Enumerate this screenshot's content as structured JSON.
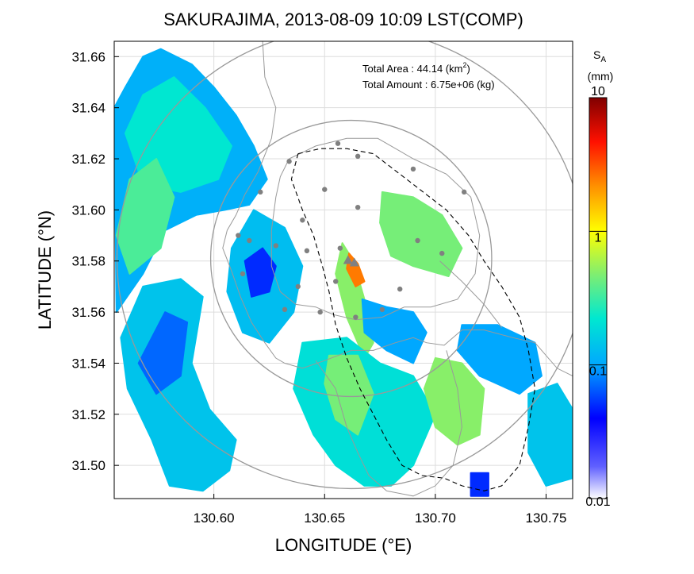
{
  "chart_data": {
    "type": "heatmap",
    "title": "SAKURAJIMA, 2013-08-09 10:09 LST(COMP)",
    "xlabel": "LONGITUDE (°E)",
    "ylabel": "LATITUDE (°N)",
    "xlim": [
      130.555,
      130.762
    ],
    "ylim": [
      31.487,
      31.666
    ],
    "xticks": [
      130.6,
      130.65,
      130.7,
      130.75
    ],
    "xtick_labels": [
      "130.60",
      "130.65",
      "130.70",
      "130.75"
    ],
    "yticks": [
      31.5,
      31.52,
      31.54,
      31.56,
      31.58,
      31.6,
      31.62,
      31.64,
      31.66
    ],
    "ytick_labels": [
      "31.50",
      "31.52",
      "31.54",
      "31.56",
      "31.58",
      "31.60",
      "31.62",
      "31.64",
      "31.66"
    ],
    "grid": true,
    "annotation": {
      "area_label": "Total Area   : 44.14 (km",
      "area_sup": "2",
      "area_close": ")",
      "amount_label": "Total Amount : 6.75e+06 (kg)"
    },
    "colorbar": {
      "title_main": "S",
      "title_sub": "A",
      "unit": "(mm)",
      "scale": "log",
      "range": [
        0.01,
        10
      ],
      "tick_values": [
        0.01,
        0.1,
        1,
        10
      ],
      "tick_labels": [
        "0.01",
        "0.1",
        "1",
        "10"
      ],
      "colormap": [
        "#ffffff",
        "#0000ff",
        "#00ccff",
        "#88ee88",
        "#ffff00",
        "#ff8000",
        "#ff0000",
        "#800000"
      ]
    },
    "vent": {
      "lon": 130.662,
      "lat": 31.581
    },
    "stations": [
      [
        130.634,
        31.619
      ],
      [
        130.656,
        31.626
      ],
      [
        130.665,
        31.621
      ],
      [
        130.69,
        31.616
      ],
      [
        130.713,
        31.607
      ],
      [
        130.621,
        31.607
      ],
      [
        130.65,
        31.608
      ],
      [
        130.665,
        31.601
      ],
      [
        130.64,
        31.596
      ],
      [
        130.611,
        31.59
      ],
      [
        130.616,
        31.588
      ],
      [
        130.628,
        31.586
      ],
      [
        130.642,
        31.584
      ],
      [
        130.657,
        31.585
      ],
      [
        130.692,
        31.588
      ],
      [
        130.703,
        31.583
      ],
      [
        130.613,
        31.575
      ],
      [
        130.638,
        31.57
      ],
      [
        130.655,
        31.572
      ],
      [
        130.684,
        31.569
      ],
      [
        130.632,
        31.561
      ],
      [
        130.648,
        31.56
      ],
      [
        130.664,
        31.558
      ],
      [
        130.676,
        31.561
      ]
    ],
    "echo_regions": [
      {
        "poly": [
          [
            130.555,
            31.64
          ],
          [
            130.56,
            31.648
          ],
          [
            130.568,
            31.66
          ],
          [
            130.576,
            31.663
          ],
          [
            130.59,
            31.657
          ],
          [
            130.6,
            31.648
          ],
          [
            130.61,
            31.637
          ],
          [
            130.618,
            31.625
          ],
          [
            130.624,
            31.612
          ],
          [
            130.616,
            31.602
          ],
          [
            130.605,
            31.6
          ],
          [
            130.592,
            31.598
          ],
          [
            130.578,
            31.592
          ],
          [
            130.568,
            31.575
          ],
          [
            130.556,
            31.56
          ]
        ],
        "value": 0.11
      },
      {
        "poly": [
          [
            130.56,
            31.63
          ],
          [
            130.568,
            31.645
          ],
          [
            130.582,
            31.652
          ],
          [
            130.596,
            31.64
          ],
          [
            130.608,
            31.625
          ],
          [
            130.602,
            31.612
          ],
          [
            130.585,
            31.607
          ],
          [
            130.568,
            31.61
          ]
        ],
        "value": 0.22
      },
      {
        "poly": [
          [
            130.556,
            31.59
          ],
          [
            130.562,
            31.612
          ],
          [
            130.574,
            31.62
          ],
          [
            130.582,
            31.605
          ],
          [
            130.576,
            31.585
          ],
          [
            130.562,
            31.575
          ]
        ],
        "value": 0.35
      },
      {
        "poly": [
          [
            130.568,
            31.57
          ],
          [
            130.585,
            31.573
          ],
          [
            130.595,
            31.566
          ],
          [
            130.59,
            31.54
          ],
          [
            130.598,
            31.522
          ],
          [
            130.61,
            31.51
          ],
          [
            130.607,
            31.498
          ],
          [
            130.595,
            31.49
          ],
          [
            130.58,
            31.492
          ],
          [
            130.572,
            31.51
          ],
          [
            130.561,
            31.53
          ],
          [
            130.558,
            31.55
          ]
        ],
        "value": 0.14
      },
      {
        "poly": [
          [
            130.578,
            31.56
          ],
          [
            130.588,
            31.556
          ],
          [
            130.585,
            31.535
          ],
          [
            130.574,
            31.528
          ],
          [
            130.566,
            31.54
          ]
        ],
        "value": 0.07
      },
      {
        "poly": [
          [
            130.618,
            31.6
          ],
          [
            130.632,
            31.593
          ],
          [
            130.64,
            31.578
          ],
          [
            130.636,
            31.56
          ],
          [
            130.625,
            31.548
          ],
          [
            130.613,
            31.552
          ],
          [
            130.606,
            31.568
          ],
          [
            130.608,
            31.585
          ]
        ],
        "value": 0.13
      },
      {
        "poly": [
          [
            130.614,
            31.58
          ],
          [
            130.622,
            31.585
          ],
          [
            130.628,
            31.578
          ],
          [
            130.625,
            31.568
          ],
          [
            130.617,
            31.566
          ]
        ],
        "value": 0.05
      },
      {
        "poly": [
          [
            130.658,
            31.587
          ],
          [
            130.663,
            31.58
          ],
          [
            130.668,
            31.565
          ],
          [
            130.672,
            31.548
          ],
          [
            130.668,
            31.542
          ],
          [
            130.66,
            31.558
          ],
          [
            130.655,
            31.575
          ]
        ],
        "value": 0.5
      },
      {
        "poly": [
          [
            130.661,
            31.583
          ],
          [
            130.665,
            31.579
          ],
          [
            130.668,
            31.572
          ],
          [
            130.664,
            31.57
          ],
          [
            130.66,
            31.577
          ]
        ],
        "value": 2.5
      },
      {
        "poly": [
          [
            130.667,
            31.565
          ],
          [
            130.678,
            31.562
          ],
          [
            130.69,
            31.56
          ],
          [
            130.696,
            31.552
          ],
          [
            130.69,
            31.54
          ],
          [
            130.678,
            31.545
          ],
          [
            130.668,
            31.552
          ]
        ],
        "value": 0.1
      },
      {
        "poly": [
          [
            130.676,
            31.607
          ],
          [
            130.69,
            31.605
          ],
          [
            130.703,
            31.598
          ],
          [
            130.712,
            31.585
          ],
          [
            130.706,
            31.574
          ],
          [
            130.69,
            31.578
          ],
          [
            130.68,
            31.582
          ],
          [
            130.675,
            31.595
          ]
        ],
        "value": 0.45
      },
      {
        "poly": [
          [
            130.64,
            31.548
          ],
          [
            130.66,
            31.55
          ],
          [
            130.675,
            31.54
          ],
          [
            130.69,
            31.535
          ],
          [
            130.7,
            31.52
          ],
          [
            130.69,
            31.5
          ],
          [
            130.68,
            31.492
          ],
          [
            130.668,
            31.492
          ],
          [
            130.655,
            31.5
          ],
          [
            130.645,
            31.512
          ],
          [
            130.636,
            31.53
          ]
        ],
        "value": 0.2
      },
      {
        "poly": [
          [
            130.652,
            31.543
          ],
          [
            130.665,
            31.543
          ],
          [
            130.672,
            31.528
          ],
          [
            130.665,
            31.512
          ],
          [
            130.655,
            31.518
          ],
          [
            130.65,
            31.532
          ]
        ],
        "value": 0.45
      },
      {
        "poly": [
          [
            130.7,
            31.542
          ],
          [
            130.712,
            31.54
          ],
          [
            130.722,
            31.53
          ],
          [
            130.72,
            31.512
          ],
          [
            130.71,
            31.508
          ],
          [
            130.7,
            31.515
          ],
          [
            130.695,
            31.53
          ]
        ],
        "value": 0.5
      },
      {
        "poly": [
          [
            130.712,
            31.555
          ],
          [
            130.728,
            31.555
          ],
          [
            130.745,
            31.548
          ],
          [
            130.748,
            31.535
          ],
          [
            130.738,
            31.528
          ],
          [
            130.72,
            31.535
          ],
          [
            130.71,
            31.545
          ]
        ],
        "value": 0.1
      },
      {
        "poly": [
          [
            130.742,
            31.528
          ],
          [
            130.755,
            31.532
          ],
          [
            130.762,
            31.522
          ],
          [
            130.762,
            31.495
          ],
          [
            130.75,
            31.492
          ],
          [
            130.742,
            31.505
          ]
        ],
        "value": 0.14
      },
      {
        "poly": [
          [
            130.716,
            31.497
          ],
          [
            130.724,
            31.497
          ],
          [
            130.724,
            31.488
          ],
          [
            130.716,
            31.488
          ]
        ],
        "value": 0.05
      }
    ],
    "range_rings": [
      {
        "center": [
          130.662,
          31.581
        ],
        "radius_km": 10
      },
      {
        "center": [
          130.662,
          31.581
        ],
        "radius_km": 6
      }
    ],
    "coastline": [
      [
        [
          130.622,
          31.666
        ],
        [
          130.623,
          31.652
        ],
        [
          130.628,
          31.64
        ],
        [
          130.626,
          31.628
        ],
        [
          130.62,
          31.615
        ],
        [
          130.614,
          31.606
        ],
        [
          130.61,
          31.598
        ],
        [
          130.606,
          31.592
        ],
        [
          130.604,
          31.585
        ],
        [
          130.608,
          31.576
        ],
        [
          130.612,
          31.566
        ],
        [
          130.617,
          31.556
        ],
        [
          130.623,
          31.548
        ],
        [
          130.628,
          31.542
        ],
        [
          130.632,
          31.54
        ],
        [
          130.64,
          31.538
        ],
        [
          130.65,
          31.541
        ],
        [
          130.662,
          31.545
        ],
        [
          130.672,
          31.545
        ],
        [
          130.682,
          31.548
        ],
        [
          130.69,
          31.55
        ],
        [
          130.696,
          31.548
        ],
        [
          130.704,
          31.547
        ],
        [
          130.712,
          31.553
        ],
        [
          130.722,
          31.553
        ],
        [
          130.735,
          31.55
        ],
        [
          130.745,
          31.548
        ],
        [
          130.755,
          31.538
        ],
        [
          130.762,
          31.535
        ]
      ],
      [
        [
          130.634,
          31.62
        ],
        [
          130.646,
          31.625
        ],
        [
          130.66,
          31.628
        ],
        [
          130.674,
          31.628
        ],
        [
          130.69,
          31.62
        ],
        [
          130.705,
          31.614
        ],
        [
          130.716,
          31.605
        ],
        [
          130.72,
          31.59
        ],
        [
          130.718,
          31.575
        ],
        [
          130.71,
          31.565
        ],
        [
          130.698,
          31.562
        ],
        [
          130.686,
          31.562
        ],
        [
          130.676,
          31.558
        ],
        [
          130.664,
          31.557
        ],
        [
          130.654,
          31.559
        ],
        [
          130.646,
          31.562
        ],
        [
          130.637,
          31.563
        ],
        [
          130.63,
          31.568
        ],
        [
          130.626,
          31.578
        ],
        [
          130.626,
          31.592
        ],
        [
          130.628,
          31.605
        ],
        [
          130.63,
          31.613
        ],
        [
          130.634,
          31.62
        ]
      ],
      [
        [
          130.646,
          31.541
        ],
        [
          130.655,
          31.53
        ],
        [
          130.66,
          31.515
        ],
        [
          130.665,
          31.505
        ],
        [
          130.67,
          31.496
        ],
        [
          130.678,
          31.49
        ],
        [
          130.69,
          31.488
        ],
        [
          130.7,
          31.492
        ],
        [
          130.708,
          31.5
        ],
        [
          130.712,
          31.515
        ],
        [
          130.71,
          31.53
        ],
        [
          130.705,
          31.545
        ]
      ],
      [
        [
          130.702,
          31.58
        ],
        [
          130.712,
          31.572
        ],
        [
          130.722,
          31.563
        ],
        [
          130.73,
          31.554
        ]
      ]
    ],
    "boundary": [
      [
        130.638,
        31.622
      ],
      [
        130.648,
        31.624
      ],
      [
        130.66,
        31.624
      ],
      [
        130.672,
        31.622
      ],
      [
        130.69,
        31.61
      ],
      [
        130.705,
        31.6
      ],
      [
        130.715,
        31.59
      ],
      [
        130.722,
        31.58
      ],
      [
        130.73,
        31.57
      ],
      [
        130.738,
        31.558
      ],
      [
        130.742,
        31.545
      ],
      [
        130.745,
        31.53
      ],
      [
        130.742,
        31.515
      ],
      [
        130.738,
        31.5
      ],
      [
        130.73,
        31.492
      ],
      [
        130.722,
        31.49
      ],
      [
        130.712,
        31.492
      ],
      [
        130.704,
        31.495
      ],
      [
        130.694,
        31.496
      ],
      [
        130.685,
        31.5
      ],
      [
        130.678,
        31.51
      ],
      [
        130.672,
        31.52
      ],
      [
        130.666,
        31.53
      ],
      [
        130.66,
        31.542
      ],
      [
        130.655,
        31.555
      ],
      [
        130.652,
        31.568
      ],
      [
        130.649,
        31.578
      ],
      [
        130.645,
        31.59
      ],
      [
        130.64,
        31.6
      ],
      [
        130.635,
        31.612
      ],
      [
        130.638,
        31.622
      ]
    ]
  }
}
